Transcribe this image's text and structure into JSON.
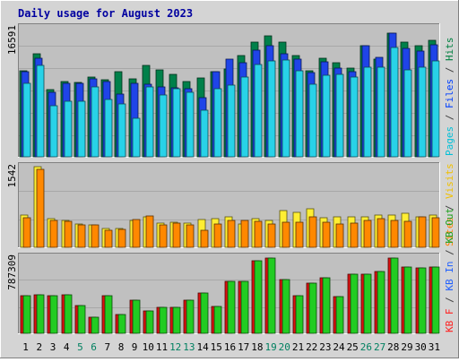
{
  "chart_data": {
    "type": "bar",
    "title": "Daily usage for August 2023",
    "categories": [
      "1",
      "2",
      "3",
      "4",
      "5",
      "6",
      "7",
      "8",
      "9",
      "10",
      "11",
      "12",
      "13",
      "14",
      "15",
      "16",
      "17",
      "18",
      "19",
      "20",
      "21",
      "22",
      "23",
      "24",
      "25",
      "26",
      "27",
      "28",
      "29",
      "30",
      "31"
    ],
    "weekend_days": [
      "5",
      "6",
      "12",
      "13",
      "19",
      "20",
      "26",
      "27"
    ],
    "panels": [
      {
        "id": "top",
        "max_label": "16591",
        "ymax": 16591,
        "legend": [
          {
            "text": "Pages",
            "color": "#00c0d8"
          },
          {
            "text": " / ",
            "color": "#404040"
          },
          {
            "text": "Files",
            "color": "#0040ff"
          },
          {
            "text": " / ",
            "color": "#404040"
          },
          {
            "text": "Hits",
            "color": "#008040"
          }
        ],
        "series": [
          {
            "key": "hits",
            "color": "#00804a",
            "values": [
              11100,
              13200,
              8600,
              9700,
              9600,
              10200,
              9900,
              11000,
              10000,
              11700,
              11200,
              10600,
              9700,
              10100,
              11000,
              11300,
              13000,
              14800,
              15500,
              14800,
              13000,
              11100,
              12700,
              12100,
              11400,
              14300,
              12600,
              15900,
              14700,
              14300,
              15000
            ]
          },
          {
            "key": "files",
            "color": "#1f44e8",
            "values": [
              10900,
              12700,
              8300,
              9500,
              9400,
              10000,
              9700,
              8100,
              9500,
              9300,
              9000,
              8900,
              8700,
              7600,
              11000,
              12600,
              12100,
              13700,
              14300,
              13200,
              12600,
              10800,
              12200,
              11400,
              11000,
              14300,
              12800,
              15900,
              13900,
              13600,
              14400
            ]
          },
          {
            "key": "pages",
            "color": "#28d2e8",
            "values": [
              9500,
              11700,
              6600,
              7200,
              7200,
              9000,
              7400,
              6800,
              5000,
              9000,
              8000,
              8700,
              8300,
              6000,
              8700,
              9200,
              10200,
              11900,
              12300,
              12500,
              11100,
              9300,
              10500,
              10600,
              10300,
              11500,
              11500,
              14100,
              11200,
              11500,
              12300
            ]
          }
        ]
      },
      {
        "id": "middle",
        "max_label": "1542",
        "ymax": 1542,
        "legend": [
          {
            "text": "Sites",
            "color": "#ff8000"
          },
          {
            "text": " / ",
            "color": "#404040"
          },
          {
            "text": "Visits",
            "color": "#f0c000"
          }
        ],
        "series": [
          {
            "key": "visits",
            "color": "#ffee33",
            "values": [
              620,
              1542,
              540,
              520,
              440,
              430,
              360,
              360,
              520,
              590,
              460,
              480,
              470,
              530,
              550,
              580,
              440,
              540,
              510,
              700,
              660,
              740,
              570,
              580,
              590,
              590,
              610,
              610,
              650,
              580,
              610
            ]
          },
          {
            "key": "sites",
            "color": "#ff8800",
            "values": [
              560,
              1490,
              520,
              490,
              430,
              420,
              330,
              340,
              530,
              600,
              420,
              460,
              420,
              330,
              440,
              510,
              510,
              500,
              440,
              480,
              480,
              590,
              480,
              440,
              460,
              520,
              540,
              520,
              500,
              590,
              570
            ]
          }
        ]
      },
      {
        "id": "bottom",
        "max_label": "787309",
        "ymax": 787309,
        "legend": [
          {
            "text": "KB F",
            "color": "#ff2020"
          },
          {
            "text": " / ",
            "color": "#404040"
          },
          {
            "text": "KB In",
            "color": "#2060ff"
          },
          {
            "text": " / ",
            "color": "#404040"
          },
          {
            "text": "KB Out",
            "color": "#20a020"
          }
        ],
        "series": [
          {
            "key": "kb_f",
            "color": "#ee1111",
            "values": [
              0,
              0,
              0,
              0,
              0,
              0,
              0,
              0,
              0,
              0,
              0,
              0,
              0,
              0,
              0,
              0,
              0,
              0,
              0,
              0,
              0,
              0,
              0,
              0,
              0,
              0,
              0,
              0,
              0,
              0,
              0
            ]
          },
          {
            "key": "kb_in",
            "color": "#1133ee",
            "values": [
              0,
              0,
              0,
              0,
              0,
              0,
              0,
              0,
              0,
              0,
              0,
              0,
              0,
              0,
              0,
              0,
              0,
              0,
              0,
              0,
              0,
              0,
              0,
              0,
              0,
              0,
              0,
              0,
              0,
              0,
              0
            ]
          },
          {
            "key": "kb_out",
            "color": "#22cc22",
            "values": [
              390000,
              400000,
              390000,
              400000,
              285000,
              170000,
              390000,
              195000,
              340000,
              230000,
              270000,
              270000,
              340000,
              420000,
              280000,
              540000,
              540000,
              750000,
              775000,
              560000,
              390000,
              520000,
              570000,
              380000,
              610000,
              610000,
              635000,
              775000,
              690000,
              680000,
              690000
            ]
          },
          {
            "key": "kb_out_shadow",
            "color": "#dd1111",
            "values": [
              390000,
              400000,
              390000,
              400000,
              285000,
              170000,
              390000,
              195000,
              340000,
              230000,
              270000,
              270000,
              340000,
              420000,
              280000,
              540000,
              540000,
              750000,
              775000,
              560000,
              390000,
              520000,
              570000,
              380000,
              610000,
              610000,
              635000,
              775000,
              690000,
              680000,
              690000
            ]
          }
        ]
      }
    ]
  }
}
